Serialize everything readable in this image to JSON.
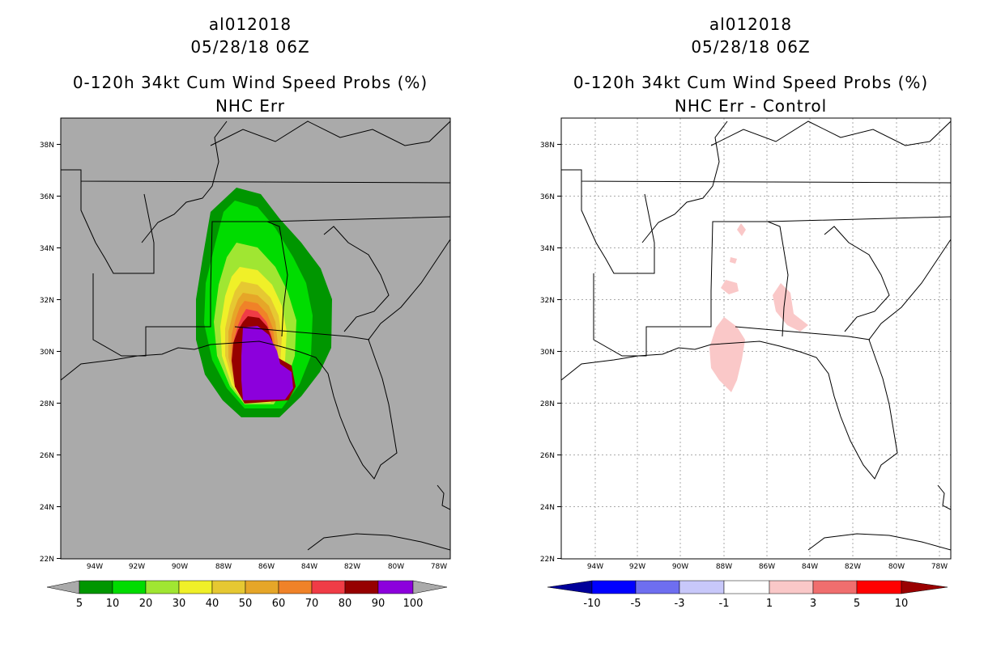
{
  "left_panel": {
    "storm_id": "al012018",
    "datetime": "05/28/18 06Z",
    "product": "0-120h 34kt Cum Wind Speed Probs (%)",
    "subtitle": "NHC Err",
    "colorbar": {
      "labels": [
        "5",
        "10",
        "20",
        "30",
        "40",
        "50",
        "60",
        "70",
        "80",
        "90",
        "100"
      ],
      "colors": [
        "#009600",
        "#00dc00",
        "#a0e632",
        "#f0f028",
        "#e6c832",
        "#e6a628",
        "#f08228",
        "#f03c46",
        "#960000",
        "#8c00dc"
      ]
    }
  },
  "right_panel": {
    "storm_id": "al012018",
    "datetime": "05/28/18 06Z",
    "product": "0-120h 34kt Cum Wind Speed Probs (%)",
    "subtitle": "NHC Err - Control",
    "colorbar": {
      "labels": [
        "-10",
        "-5",
        "-3",
        "-1",
        "1",
        "3",
        "5",
        "10"
      ],
      "colors": [
        "#00009a",
        "#0000ff",
        "#6e6ef0",
        "#c8c8fa",
        "#ffffff",
        "#fac8c8",
        "#f06e6e",
        "#ff0000",
        "#9a0000"
      ]
    }
  },
  "map_axes": {
    "lat_ticks": [
      "38N",
      "36N",
      "34N",
      "32N",
      "30N",
      "28N",
      "26N",
      "24N",
      "22N"
    ],
    "lon_ticks": [
      "94W",
      "92W",
      "90W",
      "88W",
      "86W",
      "84W",
      "82W",
      "80W",
      "78W"
    ]
  },
  "colors": {
    "land_bg_left": "#aaaaaa",
    "plot_bg_right": "#ffffff",
    "diff_positive": "#fac8c8"
  }
}
